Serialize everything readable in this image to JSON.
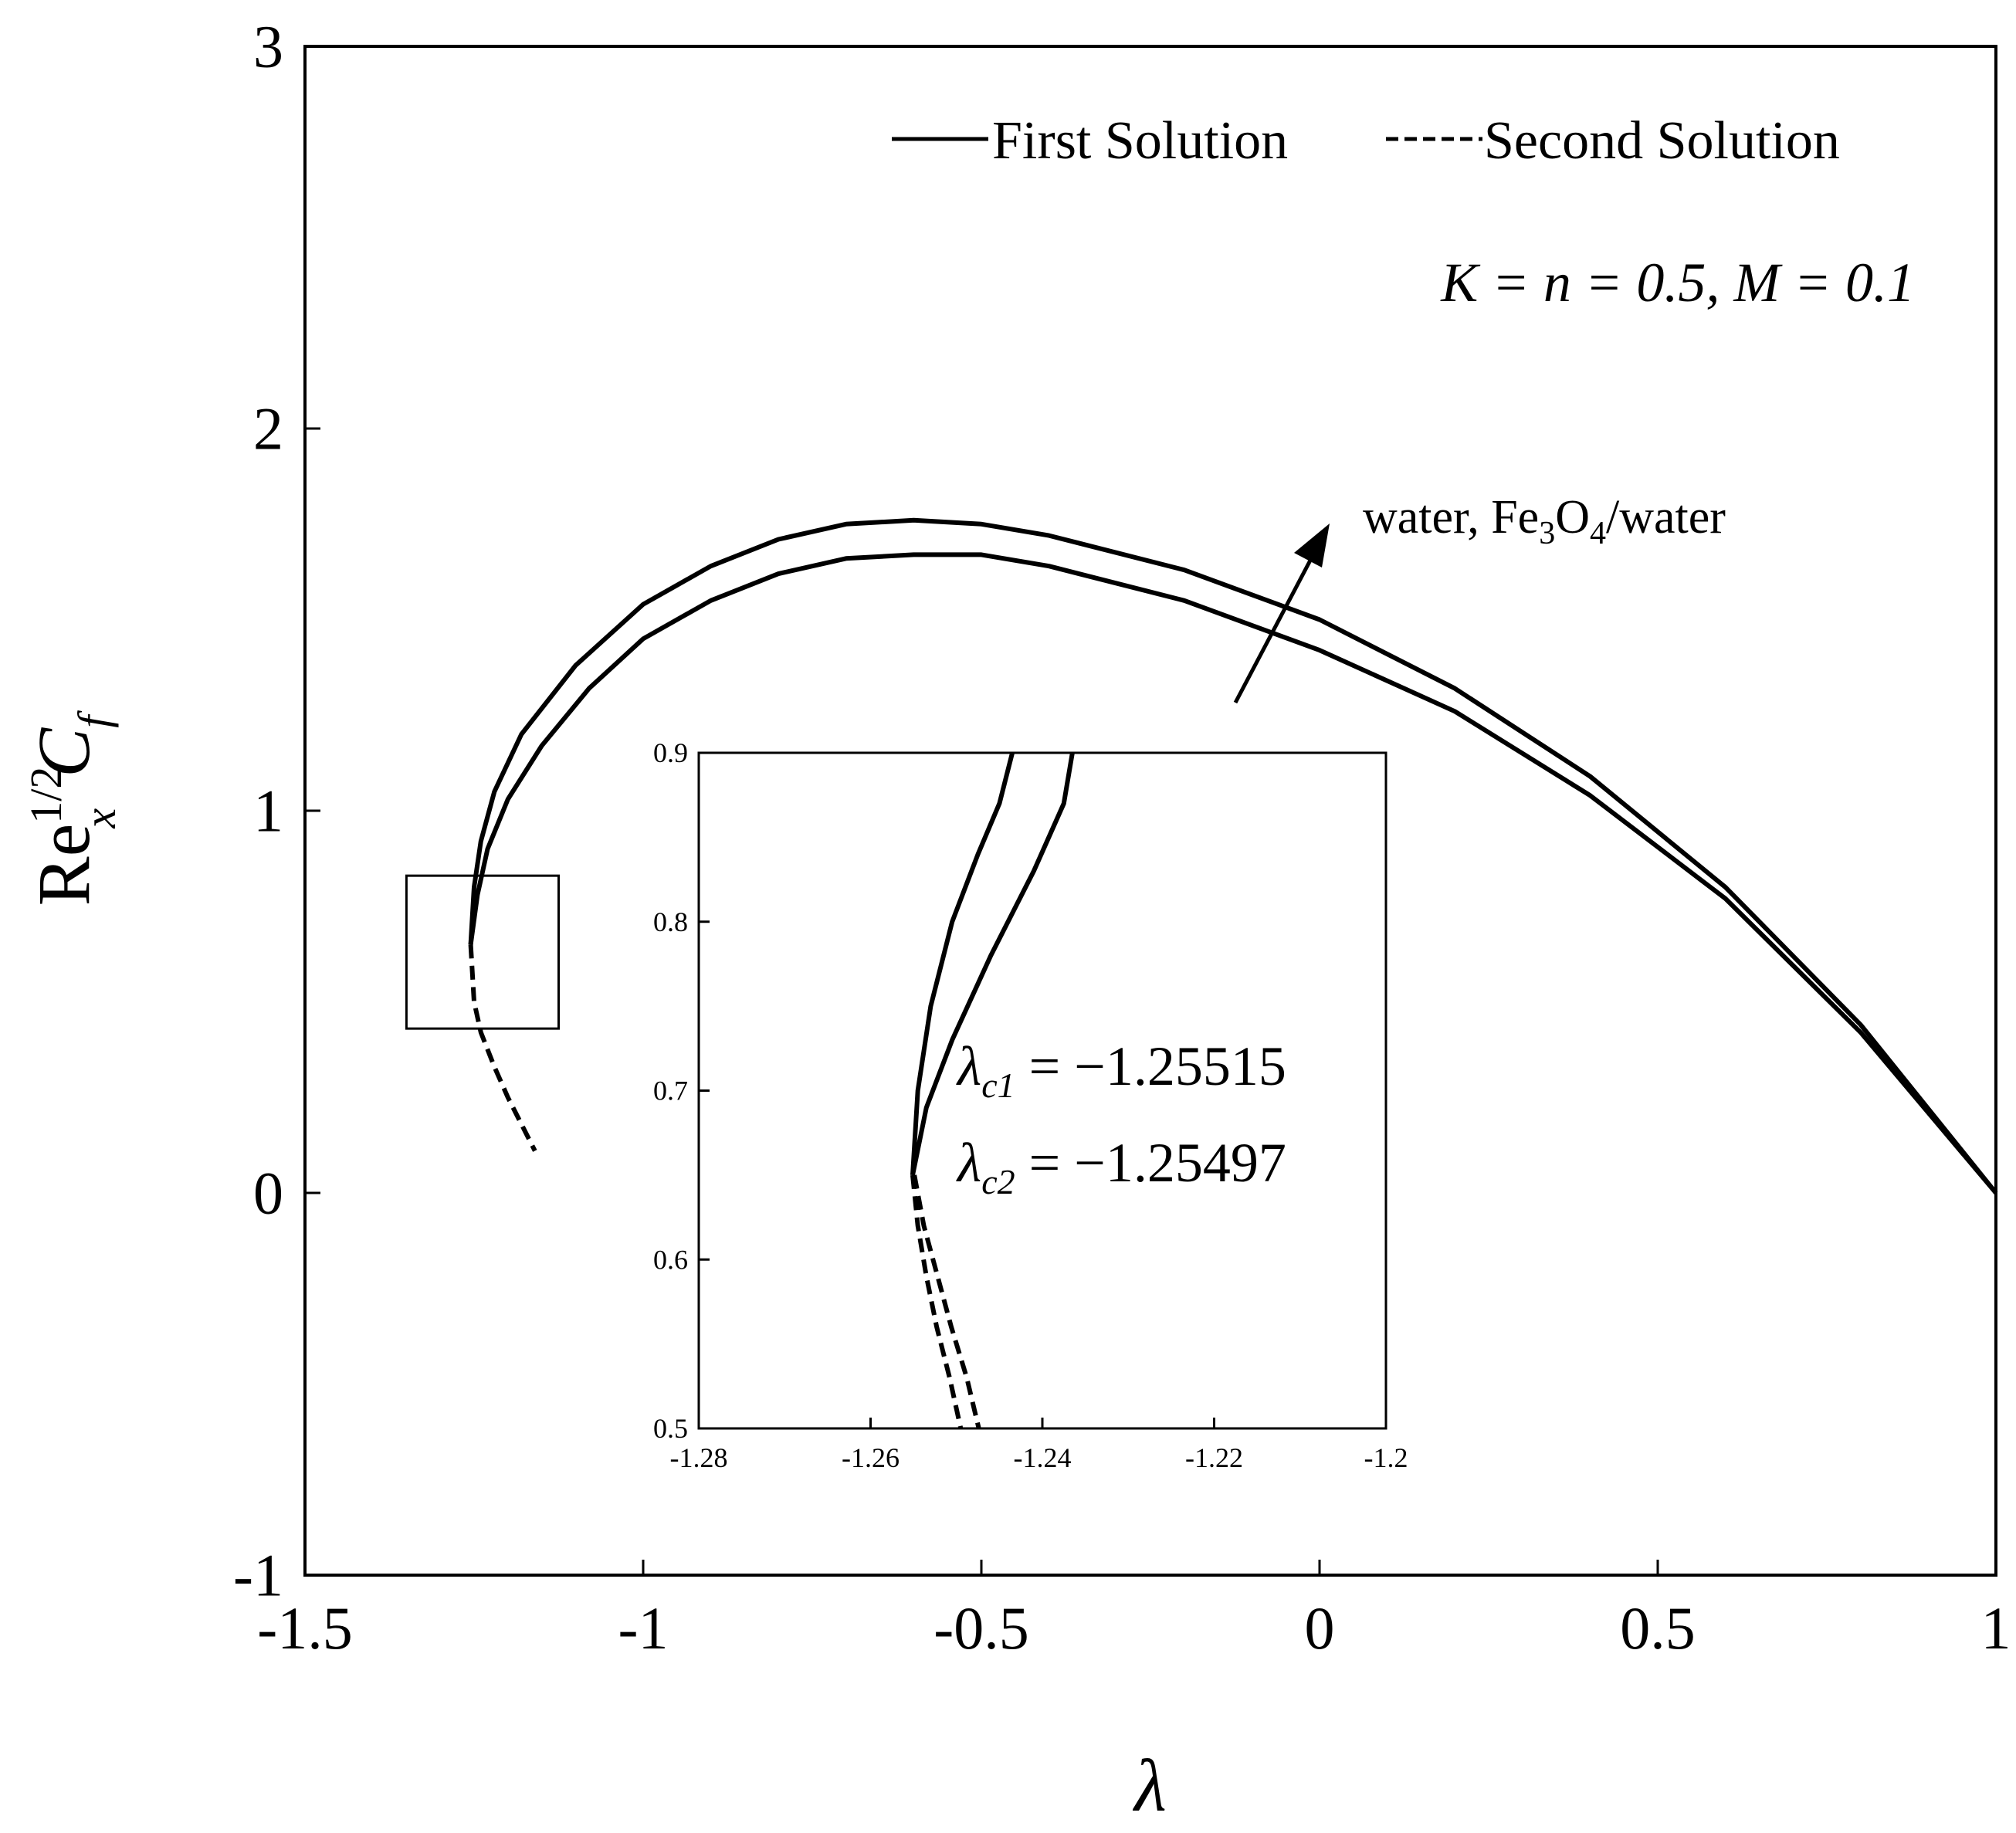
{
  "chart_data": [
    {
      "type": "line",
      "xlabel": "λ",
      "ylabel_parts": {
        "base": "Re",
        "sup": "1/2",
        "sub": "x",
        "tail_main": "C",
        "tail_sub": "f"
      },
      "xlim": [
        -1.5,
        1
      ],
      "ylim": [
        -1,
        3
      ],
      "x_ticks": [
        "-1.5",
        "-1",
        "-0.5",
        "0",
        "0.5",
        "1"
      ],
      "y_ticks": [
        "-1",
        "0",
        "1",
        "2",
        "3"
      ],
      "grid": false,
      "legend_position": "top-right",
      "legend": [
        {
          "label": "First Solution",
          "style": "solid"
        },
        {
          "label": "Second Solution",
          "style": "dashed"
        }
      ],
      "annotations": {
        "params": "K = n = 0.5,  M = 0.1",
        "arrow_label_prefix": "water, Fe",
        "arrow_label_sub1": "3",
        "arrow_label_mid": "O",
        "arrow_label_sub2": "4",
        "arrow_label_suffix": "/water"
      },
      "series": [
        {
          "style": "solid",
          "x": [
            -1.255,
            -1.25,
            -1.24,
            -1.22,
            -1.18,
            -1.1,
            -1.0,
            -0.9,
            -0.8,
            -0.7,
            -0.6,
            -0.5,
            -0.4,
            -0.2,
            0.0,
            0.2,
            0.4,
            0.6,
            0.8,
            1.0
          ],
          "y": [
            0.65,
            0.8,
            0.92,
            1.05,
            1.2,
            1.38,
            1.54,
            1.64,
            1.71,
            1.75,
            1.76,
            1.75,
            1.72,
            1.63,
            1.5,
            1.32,
            1.09,
            0.8,
            0.44,
            0.0
          ]
        },
        {
          "style": "solid",
          "x": [
            -1.255,
            -1.245,
            -1.23,
            -1.2,
            -1.15,
            -1.08,
            -1.0,
            -0.9,
            -0.8,
            -0.7,
            -0.6,
            -0.5,
            -0.4,
            -0.2,
            0.0,
            0.2,
            0.4,
            0.6,
            0.8,
            1.0
          ],
          "y": [
            0.65,
            0.78,
            0.9,
            1.03,
            1.17,
            1.32,
            1.45,
            1.55,
            1.62,
            1.66,
            1.67,
            1.67,
            1.64,
            1.55,
            1.42,
            1.26,
            1.04,
            0.77,
            0.42,
            0.0
          ]
        },
        {
          "style": "dashed",
          "x": [
            -1.255,
            -1.25,
            -1.24,
            -1.22,
            -1.2,
            -1.18,
            -1.16
          ],
          "y": [
            0.65,
            0.5,
            0.42,
            0.33,
            0.25,
            0.18,
            0.11
          ]
        }
      ],
      "zoom_box": {
        "x": [
          -1.35,
          -1.125
        ],
        "y": [
          0.43,
          0.83
        ]
      }
    },
    {
      "type": "line",
      "xlim": [
        -1.28,
        -1.2
      ],
      "ylim": [
        0.5,
        0.9
      ],
      "x_ticks": [
        "-1.28",
        "-1.26",
        "-1.24",
        "-1.22",
        "-1.2"
      ],
      "y_ticks": [
        "0.5",
        "0.6",
        "0.7",
        "0.8",
        "0.9"
      ],
      "grid": false,
      "annotations": {
        "lc1_sub": "c1",
        "lc1_value": " = −1.25515",
        "lc2_sub": "c2",
        "lc2_value": " = −1.25497"
      },
      "series": [
        {
          "style": "solid",
          "x": [
            -1.2551,
            -1.2545,
            -1.253,
            -1.2505,
            -1.2475,
            -1.245,
            -1.2435
          ],
          "y": [
            0.65,
            0.7,
            0.75,
            0.8,
            0.84,
            0.87,
            0.9
          ]
        },
        {
          "style": "solid",
          "x": [
            -1.2551,
            -1.2535,
            -1.2505,
            -1.246,
            -1.241,
            -1.2375,
            -1.2365
          ],
          "y": [
            0.65,
            0.69,
            0.73,
            0.78,
            0.83,
            0.87,
            0.9
          ]
        },
        {
          "style": "dashed",
          "x": [
            -1.2551,
            -1.2545,
            -1.2535,
            -1.2523,
            -1.2508,
            -1.2495
          ],
          "y": [
            0.65,
            0.62,
            0.59,
            0.56,
            0.53,
            0.5
          ]
        },
        {
          "style": "dashed",
          "x": [
            -1.2549,
            -1.2538,
            -1.2522,
            -1.2506,
            -1.2488,
            -1.2474
          ],
          "y": [
            0.65,
            0.62,
            0.59,
            0.56,
            0.53,
            0.5
          ]
        }
      ]
    }
  ]
}
